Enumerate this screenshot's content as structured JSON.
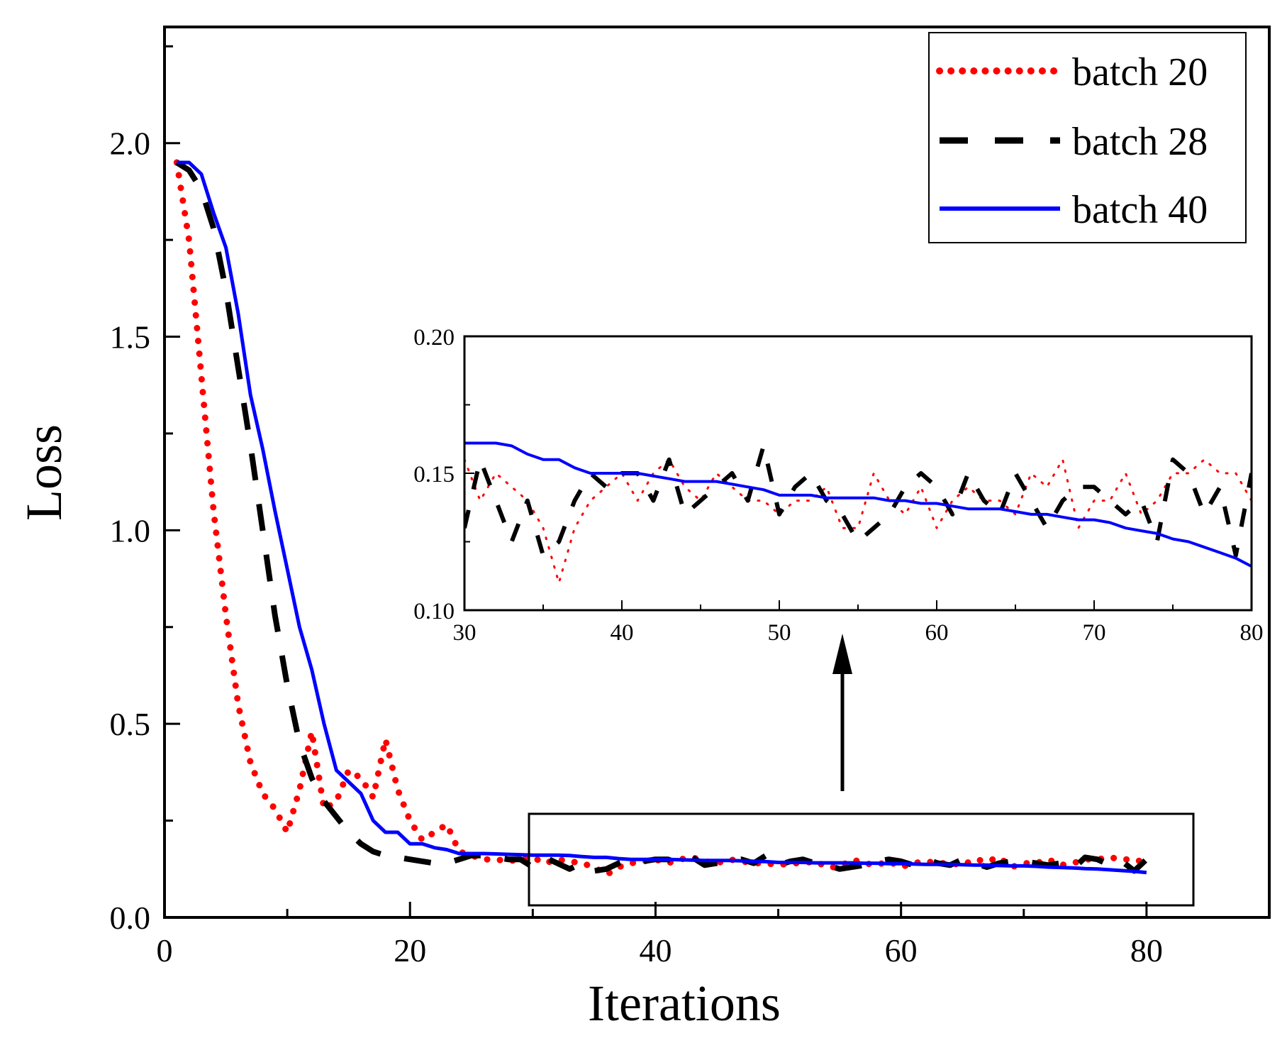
{
  "chart_data": [
    {
      "type": "line",
      "xlabel": "Iterations",
      "ylabel": "Loss",
      "xlim": [
        0,
        90
      ],
      "ylim": [
        0,
        2.3
      ],
      "xticks": [
        0,
        20,
        40,
        60,
        80
      ],
      "yticks": [
        0.0,
        0.5,
        1.0,
        1.5,
        2.0
      ],
      "xtick_labels": [
        "0",
        "20",
        "40",
        "60",
        "80"
      ],
      "ytick_labels": [
        "0.0",
        "0.5",
        "1.0",
        "1.5",
        "2.0"
      ],
      "legend_position": "top-right",
      "series": [
        {
          "name": "batch 20",
          "color": "#ff0000",
          "style": "dotted",
          "x": [
            1,
            2,
            3,
            4,
            5,
            6,
            7,
            8,
            9,
            10,
            11,
            12,
            13,
            14,
            15,
            16,
            17,
            18,
            19,
            20,
            21,
            22,
            23,
            24,
            25,
            26,
            27,
            28,
            29,
            30,
            31,
            32,
            33,
            34,
            35,
            36,
            37,
            38,
            39,
            40,
            41,
            42,
            43,
            44,
            45,
            46,
            47,
            48,
            49,
            50,
            51,
            52,
            53,
            54,
            55,
            56,
            57,
            58,
            59,
            60,
            61,
            62,
            63,
            64,
            65,
            66,
            67,
            68,
            69,
            70,
            71,
            72,
            73,
            74,
            75,
            76,
            77,
            78,
            79,
            80
          ],
          "y": [
            1.95,
            1.75,
            1.4,
            1.05,
            0.78,
            0.55,
            0.4,
            0.32,
            0.28,
            0.22,
            0.33,
            0.48,
            0.28,
            0.3,
            0.38,
            0.36,
            0.31,
            0.46,
            0.33,
            0.25,
            0.2,
            0.22,
            0.24,
            0.17,
            0.16,
            0.15,
            0.15,
            0.145,
            0.15,
            0.155,
            0.14,
            0.15,
            0.145,
            0.14,
            0.13,
            0.11,
            0.13,
            0.14,
            0.145,
            0.15,
            0.14,
            0.15,
            0.155,
            0.145,
            0.14,
            0.15,
            0.145,
            0.14,
            0.14,
            0.135,
            0.14,
            0.14,
            0.145,
            0.13,
            0.13,
            0.15,
            0.14,
            0.135,
            0.145,
            0.13,
            0.14,
            0.145,
            0.14,
            0.14,
            0.135,
            0.15,
            0.145,
            0.155,
            0.13,
            0.14,
            0.14,
            0.15,
            0.135,
            0.14,
            0.15,
            0.15,
            0.155,
            0.15,
            0.15,
            0.14
          ]
        },
        {
          "name": "batch 28",
          "color": "#000000",
          "style": "dashed",
          "x": [
            1,
            2,
            3,
            4,
            5,
            6,
            7,
            8,
            9,
            10,
            11,
            12,
            13,
            14,
            15,
            16,
            17,
            18,
            19,
            20,
            21,
            22,
            23,
            24,
            25,
            26,
            27,
            28,
            29,
            30,
            31,
            32,
            33,
            34,
            35,
            36,
            37,
            38,
            39,
            40,
            41,
            42,
            43,
            44,
            45,
            46,
            47,
            48,
            49,
            50,
            51,
            52,
            53,
            54,
            55,
            56,
            57,
            58,
            59,
            60,
            61,
            62,
            63,
            64,
            65,
            66,
            67,
            68,
            69,
            70,
            71,
            72,
            73,
            74,
            75,
            76,
            77,
            78,
            79,
            80
          ],
          "y": [
            1.95,
            1.93,
            1.88,
            1.78,
            1.62,
            1.42,
            1.22,
            1.0,
            0.78,
            0.6,
            0.45,
            0.36,
            0.3,
            0.26,
            0.22,
            0.19,
            0.17,
            0.16,
            0.155,
            0.15,
            0.145,
            0.14,
            0.14,
            0.15,
            0.16,
            0.16,
            0.155,
            0.15,
            0.15,
            0.13,
            0.155,
            0.14,
            0.125,
            0.14,
            0.12,
            0.125,
            0.14,
            0.15,
            0.145,
            0.15,
            0.15,
            0.14,
            0.155,
            0.135,
            0.14,
            0.145,
            0.15,
            0.14,
            0.16,
            0.135,
            0.145,
            0.15,
            0.14,
            0.135,
            0.125,
            0.13,
            0.135,
            0.145,
            0.15,
            0.145,
            0.135,
            0.15,
            0.14,
            0.135,
            0.15,
            0.14,
            0.13,
            0.14,
            0.145,
            0.145,
            0.14,
            0.135,
            0.14,
            0.125,
            0.155,
            0.15,
            0.135,
            0.145,
            0.12,
            0.15
          ]
        },
        {
          "name": "batch 40",
          "color": "#0000ff",
          "style": "solid",
          "x": [
            1,
            2,
            3,
            4,
            5,
            6,
            7,
            8,
            9,
            10,
            11,
            12,
            13,
            14,
            15,
            16,
            17,
            18,
            19,
            20,
            21,
            22,
            23,
            24,
            25,
            26,
            27,
            28,
            29,
            30,
            31,
            32,
            33,
            34,
            35,
            36,
            37,
            38,
            39,
            40,
            41,
            42,
            43,
            44,
            45,
            46,
            47,
            48,
            49,
            50,
            51,
            52,
            53,
            54,
            55,
            56,
            57,
            58,
            59,
            60,
            61,
            62,
            63,
            64,
            65,
            66,
            67,
            68,
            69,
            70,
            71,
            72,
            73,
            74,
            75,
            76,
            77,
            78,
            79,
            80
          ],
          "y": [
            1.95,
            1.95,
            1.92,
            1.82,
            1.73,
            1.56,
            1.35,
            1.21,
            1.05,
            0.9,
            0.75,
            0.64,
            0.5,
            0.38,
            0.35,
            0.32,
            0.25,
            0.22,
            0.22,
            0.19,
            0.19,
            0.18,
            0.175,
            0.165,
            0.165,
            0.165,
            0.164,
            0.163,
            0.162,
            0.161,
            0.161,
            0.161,
            0.16,
            0.157,
            0.155,
            0.155,
            0.152,
            0.15,
            0.15,
            0.15,
            0.15,
            0.149,
            0.148,
            0.147,
            0.147,
            0.147,
            0.146,
            0.145,
            0.144,
            0.142,
            0.142,
            0.142,
            0.141,
            0.141,
            0.141,
            0.141,
            0.14,
            0.14,
            0.139,
            0.139,
            0.138,
            0.137,
            0.137,
            0.137,
            0.136,
            0.135,
            0.135,
            0.134,
            0.133,
            0.133,
            0.132,
            0.13,
            0.129,
            0.128,
            0.126,
            0.125,
            0.123,
            0.121,
            0.119,
            0.116
          ]
        }
      ]
    },
    {
      "type": "line",
      "role": "inset zoom of iterations 30-80",
      "xlim": [
        30,
        80
      ],
      "ylim": [
        0.1,
        0.2
      ],
      "xticks": [
        30,
        40,
        50,
        60,
        70,
        80
      ],
      "yticks": [
        0.1,
        0.15,
        0.2
      ],
      "xtick_labels": [
        "30",
        "40",
        "50",
        "60",
        "70",
        "80"
      ],
      "ytick_labels": [
        "0.10",
        "0.15",
        "0.20"
      ],
      "series_source": "same series as main chart, iterations 30-80"
    }
  ]
}
